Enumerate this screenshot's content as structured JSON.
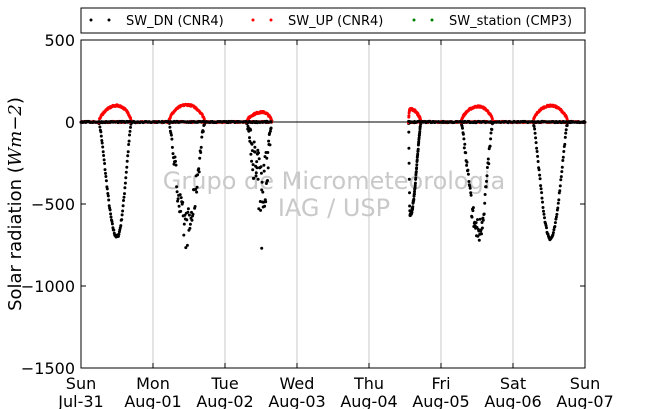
{
  "chart_data": {
    "type": "scatter",
    "ylabel_prefix": "Solar radiation (",
    "ylabel_unit": "Wm−2",
    "ylabel_suffix": ")",
    "ylim": [
      -1500,
      500
    ],
    "yticks": [
      500,
      0,
      -500,
      -1000,
      -1500
    ],
    "ytick_labels": [
      "500",
      "0",
      "−500",
      "−1000",
      "−1500"
    ],
    "xlim": [
      0,
      7
    ],
    "xticks": [
      {
        "day": "Sun",
        "date": "Jul-31"
      },
      {
        "day": "Mon",
        "date": "Aug-01"
      },
      {
        "day": "Tue",
        "date": "Aug-02"
      },
      {
        "day": "Wed",
        "date": "Aug-03"
      },
      {
        "day": "Thu",
        "date": "Aug-04"
      },
      {
        "day": "Fri",
        "date": "Aug-05"
      },
      {
        "day": "Sat",
        "date": "Aug-06"
      },
      {
        "day": "Sun",
        "date": "Aug-07"
      }
    ],
    "grid": "vertical",
    "zero_line": true,
    "legend_position": "top",
    "watermark": [
      "Grupo de Micrometeorologia",
      "IAG / USP"
    ],
    "series": [
      {
        "name": "SW_DN (CNR4)",
        "color": "#000000",
        "days": [
          {
            "start": 0.25,
            "peak": 0.5,
            "end": 0.7,
            "min": -700
          },
          {
            "start": 1.22,
            "peak": 1.47,
            "end": 1.72,
            "min": -650,
            "noise": 120
          },
          {
            "start": 2.3,
            "peak": 2.52,
            "end": 2.65,
            "min": -400,
            "noise": 200,
            "spike": -770
          },
          {
            "start": 4.55,
            "peak": 4.57,
            "end": 4.72,
            "min": -570
          },
          {
            "start": 5.28,
            "peak": 5.52,
            "end": 5.72,
            "min": -670,
            "noise": 80
          },
          {
            "start": 6.28,
            "peak": 6.52,
            "end": 6.76,
            "min": -710
          }
        ]
      },
      {
        "name": "SW_UP (CNR4)",
        "color": "#ff0000",
        "days": [
          {
            "start": 0.25,
            "peak": 0.5,
            "end": 0.7,
            "max": 100
          },
          {
            "start": 1.22,
            "peak": 1.47,
            "end": 1.72,
            "max": 105
          },
          {
            "start": 2.3,
            "peak": 2.52,
            "end": 2.65,
            "max": 60
          },
          {
            "start": 4.55,
            "peak": 4.57,
            "end": 4.72,
            "max": 80
          },
          {
            "start": 5.28,
            "peak": 5.52,
            "end": 5.72,
            "max": 95
          },
          {
            "start": 6.28,
            "peak": 6.52,
            "end": 6.76,
            "max": 100
          }
        ]
      },
      {
        "name": "SW_station (CMP3)",
        "color": "#008000",
        "days": []
      }
    ]
  }
}
